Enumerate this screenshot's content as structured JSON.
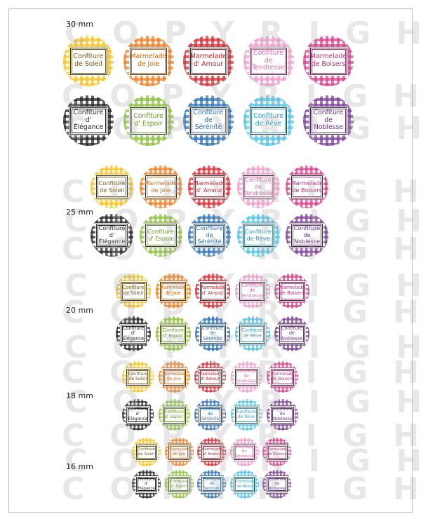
{
  "watermark_text": "COPYRIGHT",
  "colors": {
    "yellow": "#f7c21a",
    "orange": "#f07c1d",
    "red": "#d8262f",
    "pink": "#f09bc8",
    "magenta": "#d93a8a",
    "black": "#1e1e1e",
    "green": "#8bbf3d",
    "blue": "#2c6fb8",
    "cyan": "#4fc2e6",
    "purple": "#7a3b95"
  },
  "labels_row1": [
    {
      "text": "Confiture\nde Soleil",
      "color": "yellow",
      "ink": "#7a5a10"
    },
    {
      "text": "Marmelade\nde Joie",
      "color": "orange",
      "ink": "#d46a10"
    },
    {
      "text": "Marmelade\nd' Amour",
      "color": "red",
      "ink": "#c81e28"
    },
    {
      "text": "Confiture de\nTendresse",
      "color": "pink",
      "ink": "#e06aa8"
    },
    {
      "text": "Marmelade\nde Boisers",
      "color": "magenta",
      "ink": "#c2307a"
    }
  ],
  "labels_row2": [
    {
      "text": "Confiture\nd' Élégance",
      "color": "black",
      "ink": "#222222"
    },
    {
      "text": "Confiture\nd' Espoir",
      "color": "green",
      "ink": "#6a9a24"
    },
    {
      "text": "Confiture de\nSérénité",
      "color": "blue",
      "ink": "#2c6fb8"
    },
    {
      "text": "Confiture\nde Rêve",
      "color": "cyan",
      "ink": "#2a9fc8"
    },
    {
      "text": "Confiture de\nNoblesse",
      "color": "purple",
      "ink": "#6a2f85"
    }
  ],
  "sections": [
    {
      "size": "30 mm"
    },
    {
      "size": "25 mm"
    },
    {
      "size": "20 mm"
    },
    {
      "size": "18 mm"
    },
    {
      "size": "16 mm"
    }
  ]
}
